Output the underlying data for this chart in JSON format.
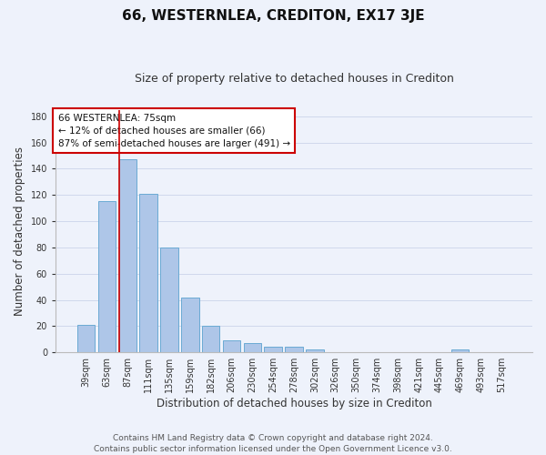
{
  "title": "66, WESTERNLEA, CREDITON, EX17 3JE",
  "subtitle": "Size of property relative to detached houses in Crediton",
  "xlabel": "Distribution of detached houses by size in Crediton",
  "ylabel": "Number of detached properties",
  "bar_values": [
    21,
    115,
    147,
    121,
    80,
    42,
    20,
    9,
    7,
    4,
    4,
    2,
    0,
    0,
    0,
    0,
    0,
    0,
    2,
    0,
    0
  ],
  "categories": [
    "39sqm",
    "63sqm",
    "87sqm",
    "111sqm",
    "135sqm",
    "159sqm",
    "182sqm",
    "206sqm",
    "230sqm",
    "254sqm",
    "278sqm",
    "302sqm",
    "326sqm",
    "350sqm",
    "374sqm",
    "398sqm",
    "421sqm",
    "445sqm",
    "469sqm",
    "493sqm",
    "517sqm"
  ],
  "bar_color": "#aec6e8",
  "bar_edge_color": "#6aaad4",
  "background_color": "#eef2fb",
  "grid_color": "#d0d8ec",
  "annotation_text": "66 WESTERNLEA: 75sqm\n← 12% of detached houses are smaller (66)\n87% of semi-detached houses are larger (491) →",
  "annotation_box_color": "#ffffff",
  "annotation_box_edge": "#cc0000",
  "vline_color": "#cc0000",
  "ylim": [
    0,
    185
  ],
  "yticks": [
    0,
    20,
    40,
    60,
    80,
    100,
    120,
    140,
    160,
    180
  ],
  "footer": "Contains HM Land Registry data © Crown copyright and database right 2024.\nContains public sector information licensed under the Open Government Licence v3.0.",
  "title_fontsize": 11,
  "subtitle_fontsize": 9,
  "label_fontsize": 8.5,
  "tick_fontsize": 7,
  "footer_fontsize": 6.5,
  "annot_fontsize": 7.5
}
